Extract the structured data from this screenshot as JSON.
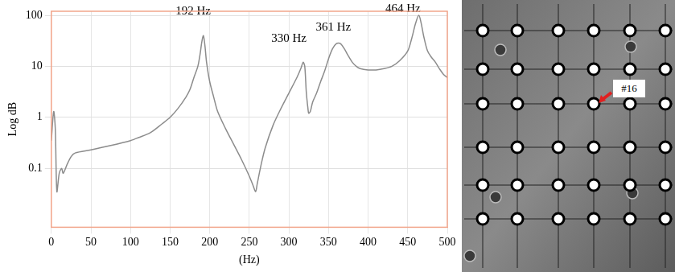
{
  "chart_data": {
    "type": "line",
    "x_label": "(Hz)",
    "y_label": "Log dB",
    "x": [
      0,
      3,
      5,
      7,
      10,
      13,
      15,
      20,
      25,
      30,
      50,
      75,
      100,
      110,
      125,
      140,
      150,
      160,
      170,
      175,
      180,
      185,
      188,
      190,
      192,
      194,
      196,
      200,
      205,
      210,
      220,
      230,
      240,
      250,
      255,
      258,
      260,
      265,
      270,
      280,
      290,
      300,
      310,
      315,
      318,
      320,
      322,
      324,
      325,
      327,
      330,
      335,
      340,
      345,
      350,
      355,
      360,
      365,
      370,
      375,
      380,
      385,
      390,
      400,
      410,
      420,
      430,
      440,
      450,
      455,
      460,
      464,
      467,
      470,
      475,
      480,
      485,
      490,
      495,
      500
    ],
    "values": [
      0.35,
      1.3,
      0.6,
      0.035,
      0.08,
      0.1,
      0.08,
      0.12,
      0.17,
      0.2,
      0.23,
      0.28,
      0.35,
      0.4,
      0.5,
      0.75,
      1.0,
      1.5,
      2.5,
      3.5,
      6,
      10,
      18,
      30,
      40,
      25,
      12,
      5,
      2.5,
      1.3,
      0.6,
      0.3,
      0.15,
      0.07,
      0.045,
      0.035,
      0.05,
      0.12,
      0.25,
      0.7,
      1.5,
      3,
      6,
      9,
      12,
      10,
      3,
      1.5,
      1.2,
      1.3,
      2,
      3,
      5,
      8,
      14,
      22,
      28,
      28,
      22,
      16,
      12,
      10,
      9,
      8.5,
      8.5,
      9,
      10,
      13,
      20,
      35,
      70,
      100,
      70,
      40,
      20,
      15,
      12,
      9,
      7,
      6
    ],
    "color": "#8c8c8c",
    "xlim": [
      0,
      500
    ],
    "xticks": [
      0,
      50,
      100,
      150,
      200,
      250,
      300,
      350,
      400,
      450,
      500
    ],
    "ylim": [
      0.007,
      120
    ],
    "yticks": [
      0.1,
      1,
      10,
      100
    ],
    "log": "y",
    "grid": true,
    "annotations": [
      {
        "text": "192 Hz",
        "x": 179,
        "y": 90
      },
      {
        "text": "330 Hz",
        "x": 300,
        "y": 27
      },
      {
        "text": "361 Hz",
        "x": 356,
        "y": 44
      },
      {
        "text": "464 Hz",
        "x": 444,
        "y": 100
      }
    ]
  },
  "photo": {
    "label": "#16"
  }
}
